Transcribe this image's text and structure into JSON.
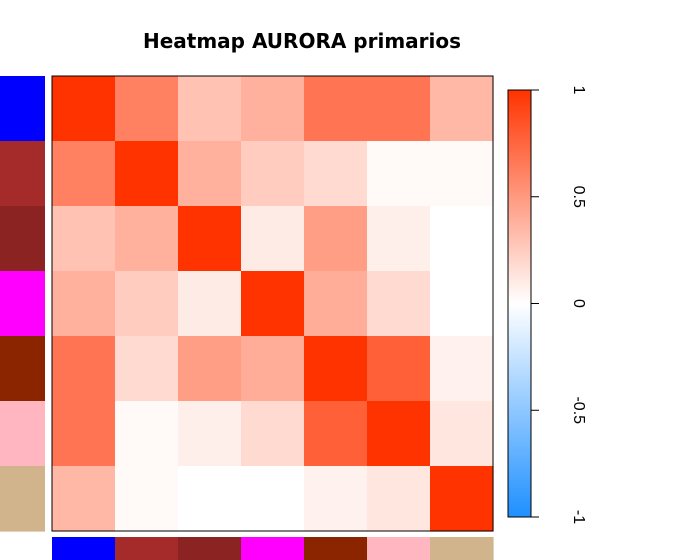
{
  "chart_data": {
    "type": "heatmap",
    "title": "Heatmap AURORA primarios",
    "xlabel": "",
    "ylabel": "",
    "matrix": [
      [
        1.0,
        0.62,
        0.3,
        0.38,
        0.68,
        0.68,
        0.35
      ],
      [
        0.62,
        1.0,
        0.38,
        0.25,
        0.18,
        0.03,
        0.03
      ],
      [
        0.3,
        0.38,
        1.0,
        0.1,
        0.48,
        0.08,
        0.0
      ],
      [
        0.38,
        0.25,
        0.1,
        1.0,
        0.4,
        0.18,
        0.0
      ],
      [
        0.68,
        0.18,
        0.48,
        0.4,
        1.0,
        0.78,
        0.07
      ],
      [
        0.68,
        0.03,
        0.08,
        0.18,
        0.78,
        1.0,
        0.12
      ],
      [
        0.35,
        0.03,
        0.0,
        0.0,
        0.07,
        0.12,
        1.0
      ]
    ],
    "row_side_colors": [
      "#0000ff",
      "#a52a2a",
      "#8b2323",
      "#ff00ff",
      "#8b2500",
      "#ffb6c1",
      "#d2b48c"
    ],
    "col_side_colors": [
      "#0000ff",
      "#a52a2a",
      "#8b2323",
      "#ff00ff",
      "#8b2500",
      "#ffb6c1",
      "#d2b48c"
    ],
    "color_scale": {
      "min": -1,
      "max": 1,
      "low": "#1e90ff",
      "mid": "#ffffff",
      "high": "#ff3300"
    },
    "colorbar_ticks": [
      "1",
      "0.5",
      "0",
      "-0.5",
      "-1"
    ],
    "colorbar_tick_values": [
      1,
      0.5,
      0,
      -0.5,
      -1
    ],
    "grid": false,
    "legend": "right"
  }
}
